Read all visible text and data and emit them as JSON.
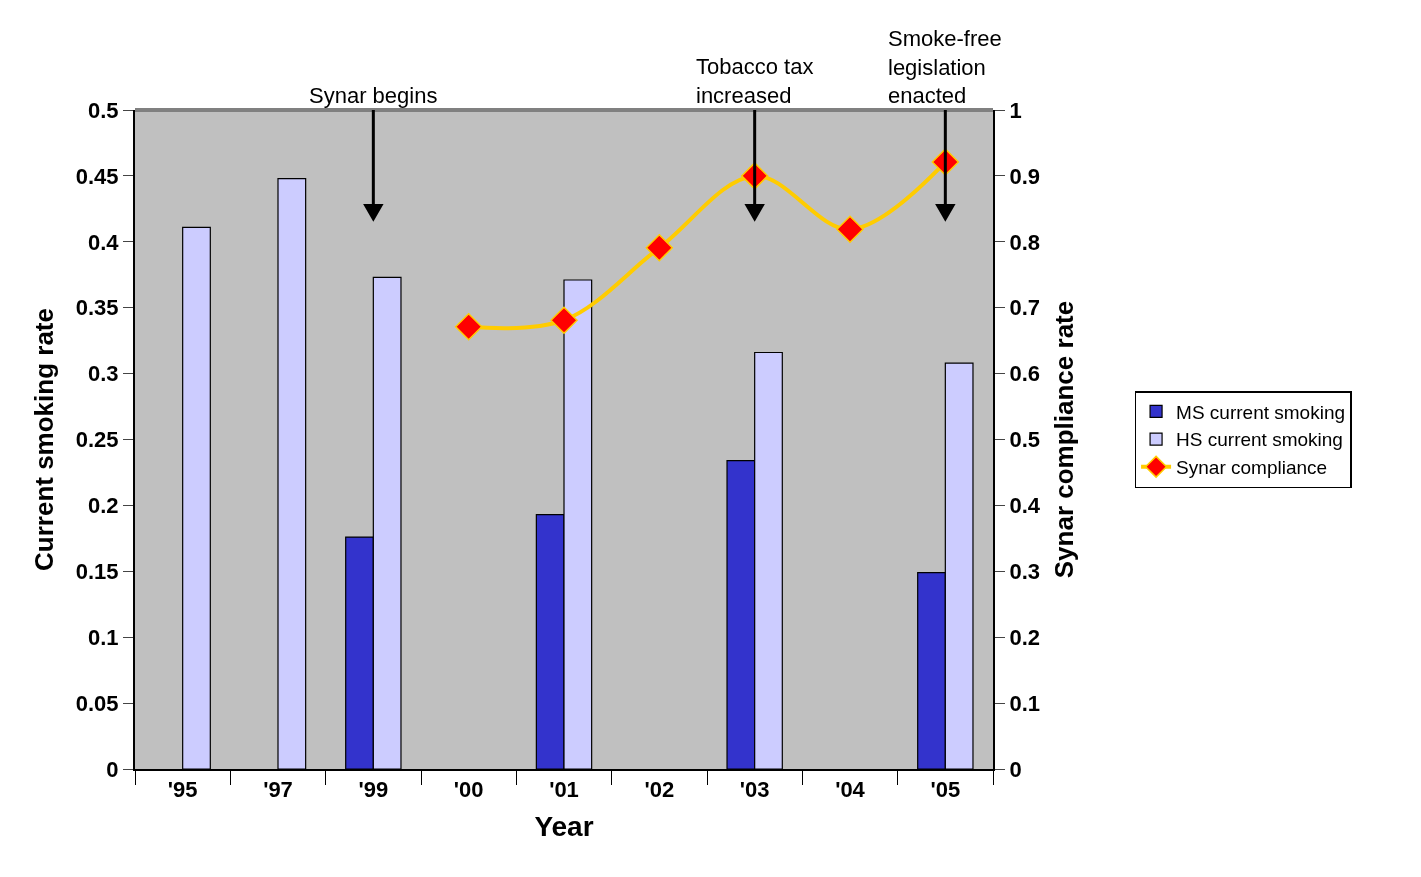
{
  "chart_data": {
    "type": "bar",
    "xlabel": "Year",
    "ylabel": "Current smoking rate",
    "y2label": "Synar compliance rate",
    "categories": [
      "'95",
      "'97",
      "'99",
      "'00",
      "'01",
      "'02",
      "'03",
      "'04",
      "'05"
    ],
    "series": [
      {
        "name": "MS current smoking",
        "color": "#3333cc",
        "values": [
          null,
          null,
          0.176,
          null,
          0.193,
          null,
          0.234,
          null,
          0.149
        ]
      },
      {
        "name": "HS current smoking",
        "color": "#ccccff",
        "values": [
          0.411,
          0.448,
          0.373,
          null,
          0.371,
          null,
          0.316,
          null,
          0.308
        ]
      },
      {
        "name": "Synar compliance",
        "type": "line",
        "axis": "y2",
        "color": "#ffcc00",
        "marker": "diamond",
        "values": [
          null,
          null,
          null,
          0.671,
          0.681,
          0.791,
          0.9,
          0.819,
          0.921
        ]
      }
    ],
    "ylim": [
      0,
      0.5
    ],
    "yticks": [
      0,
      0.05,
      0.1,
      0.15,
      0.2,
      0.25,
      0.3,
      0.35,
      0.4,
      0.45,
      0.5
    ],
    "y2lim": [
      0,
      1
    ],
    "y2ticks": [
      0,
      0.1,
      0.2,
      0.3,
      0.4,
      0.5,
      0.6,
      0.7,
      0.8,
      0.9,
      1
    ],
    "ref_lines": [
      {
        "axis": "x",
        "value": "'99",
        "label": "Synar begins"
      },
      {
        "axis": "x",
        "value": "'03",
        "label": "Tobacco tax\nincreased"
      },
      {
        "axis": "x",
        "value": "'05",
        "label": "Smoke-free\nlegislation\nenacted"
      }
    ],
    "grid": false,
    "legend": "right"
  }
}
